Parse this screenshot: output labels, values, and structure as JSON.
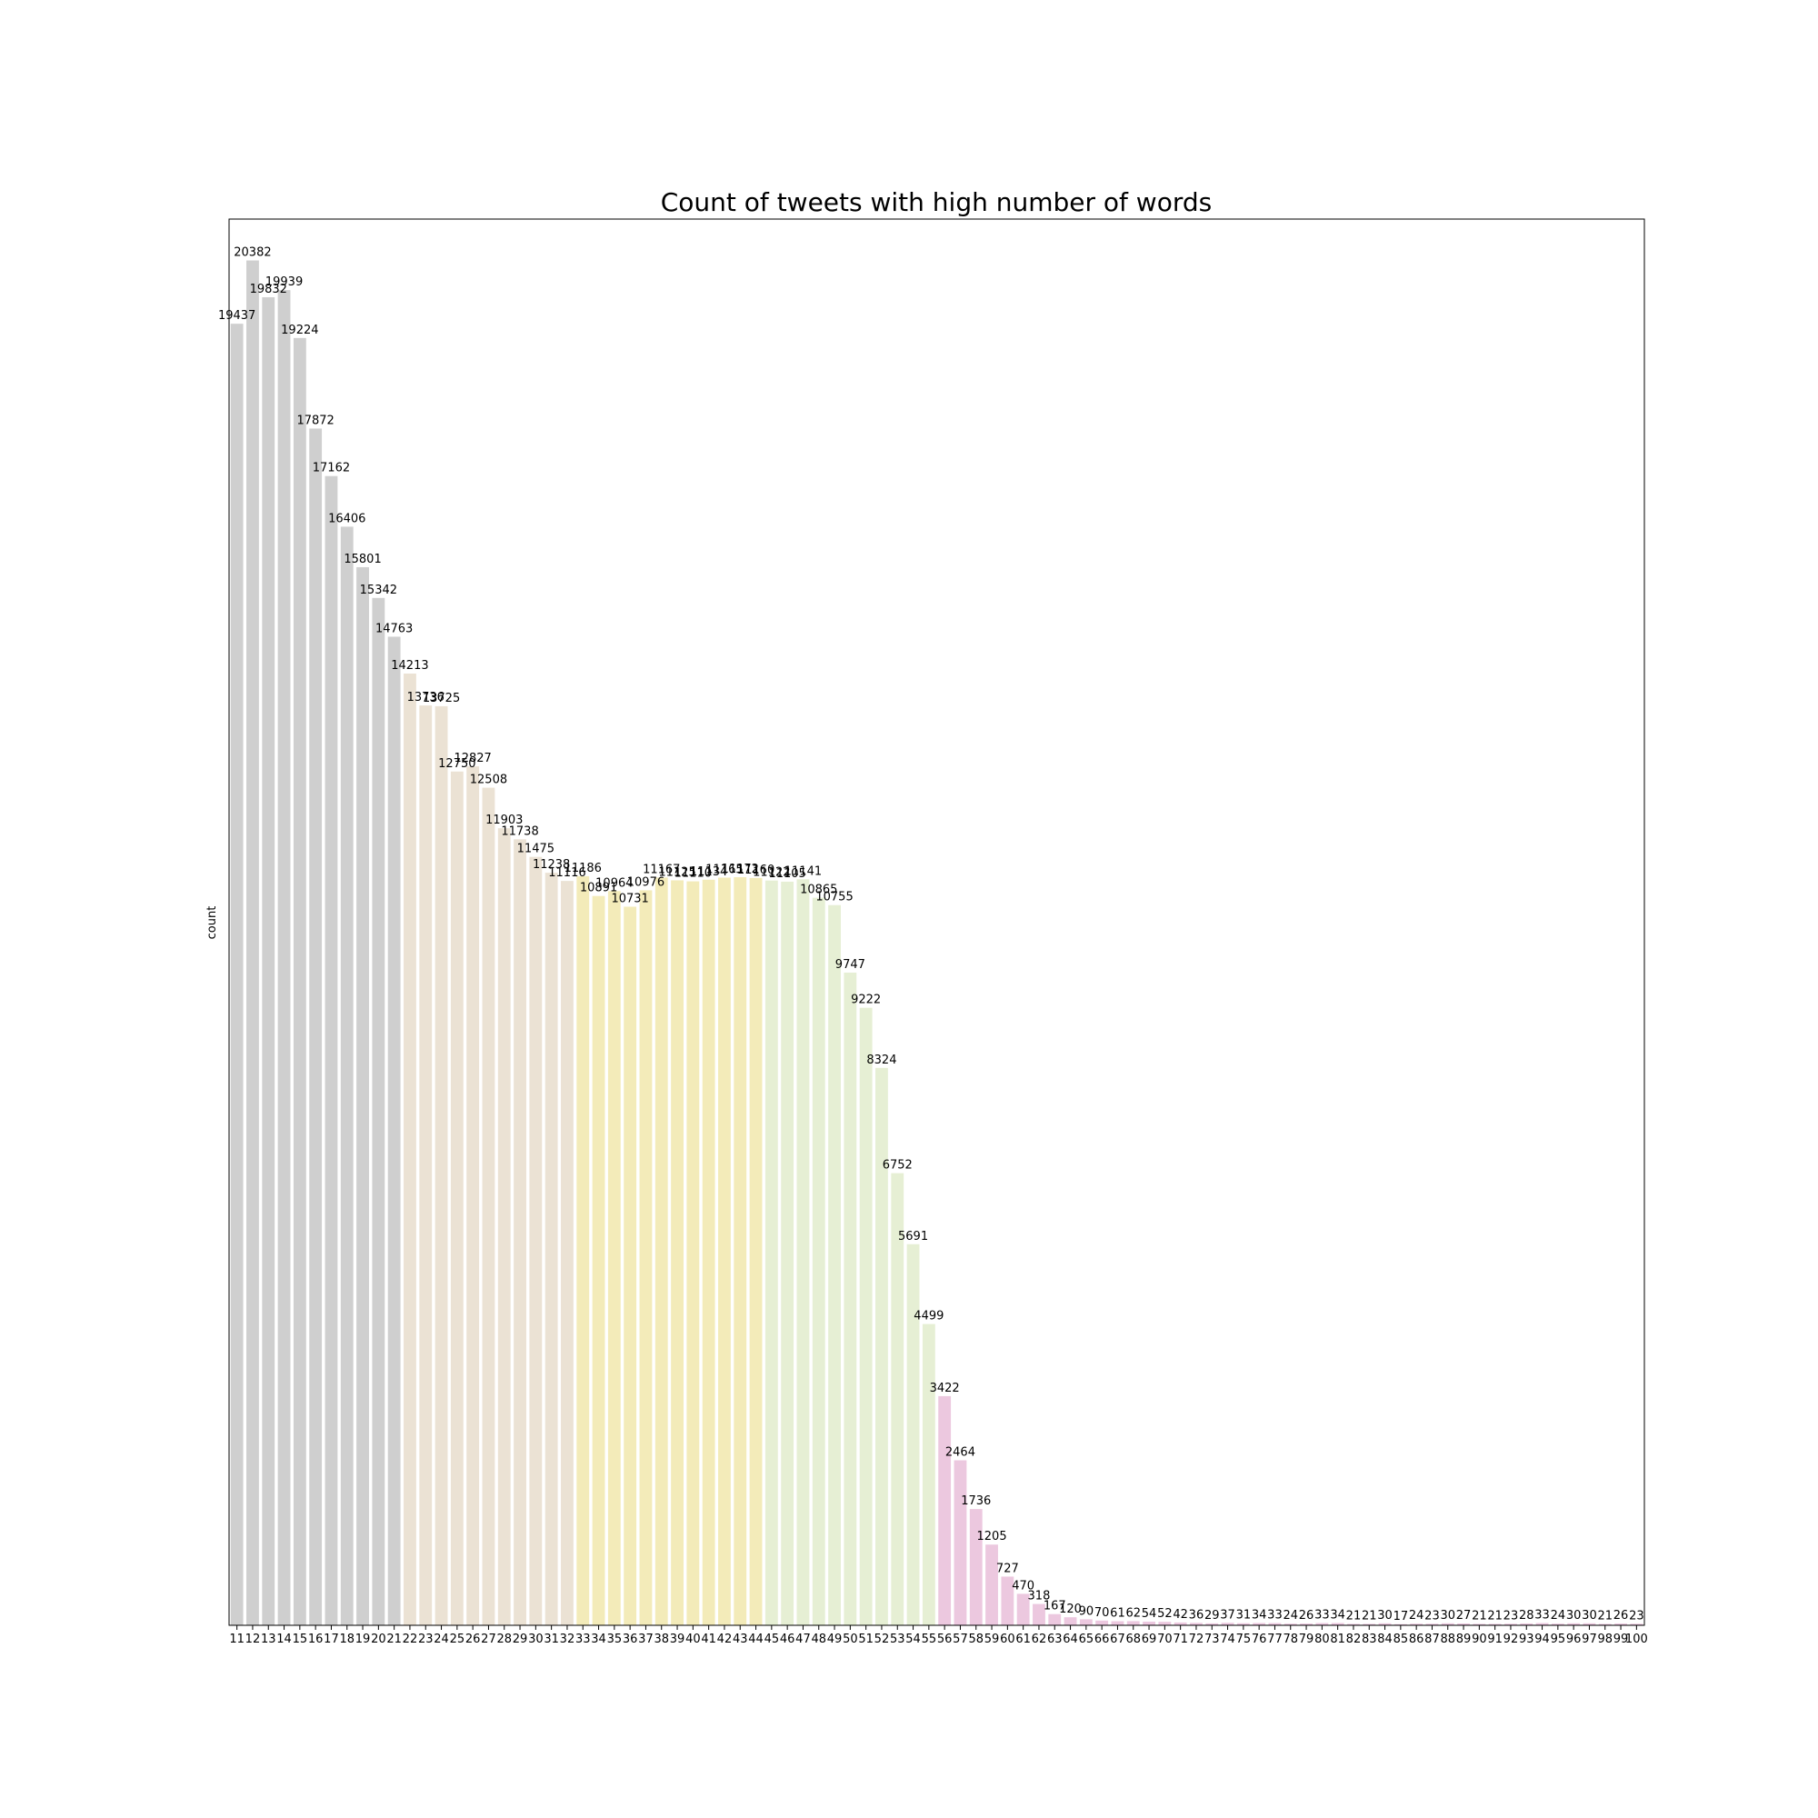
{
  "chart_data": {
    "type": "bar",
    "title": "Count of tweets with high number of words",
    "xlabel": "",
    "ylabel": "count",
    "ylim": [
      0,
      21000
    ],
    "grid": false,
    "legend": "none",
    "categories": [
      "11",
      "12",
      "13",
      "14",
      "15",
      "16",
      "17",
      "18",
      "19",
      "20",
      "21",
      "22",
      "23",
      "24",
      "25",
      "26",
      "27",
      "28",
      "29",
      "30",
      "31",
      "32",
      "33",
      "34",
      "35",
      "36",
      "37",
      "38",
      "39",
      "40",
      "41",
      "42",
      "43",
      "44",
      "45",
      "46",
      "47",
      "48",
      "49",
      "50",
      "51",
      "52",
      "53",
      "54",
      "55",
      "56",
      "57",
      "58",
      "59",
      "60",
      "61",
      "62",
      "63",
      "64",
      "65",
      "66",
      "67",
      "68",
      "69",
      "70",
      "71",
      "72",
      "73",
      "74",
      "75",
      "76",
      "77",
      "78",
      "79",
      "80",
      "81",
      "82",
      "83",
      "84",
      "85",
      "86",
      "87",
      "88",
      "89",
      "90",
      "91",
      "92",
      "93",
      "94",
      "95",
      "96",
      "97",
      "98",
      "99",
      "100"
    ],
    "values": [
      19437,
      20382,
      19832,
      19939,
      19224,
      17872,
      17162,
      16406,
      15801,
      15342,
      14763,
      14213,
      13736,
      13725,
      12750,
      12827,
      12508,
      11903,
      11738,
      11475,
      11238,
      11116,
      11186,
      10891,
      10964,
      10731,
      10976,
      11167,
      11125,
      11110,
      11134,
      11165,
      11172,
      11160,
      11122,
      11105,
      11141,
      10865,
      10755,
      9747,
      9222,
      8324,
      6752,
      5691,
      4499,
      3422,
      2464,
      1736,
      1205,
      727,
      470,
      318,
      167,
      120,
      90,
      70,
      61,
      62,
      54,
      52,
      42,
      36,
      29,
      37,
      31,
      34,
      33,
      24,
      26,
      33,
      34,
      21,
      21,
      30,
      17,
      24,
      23,
      30,
      27,
      21,
      21,
      23,
      28,
      33,
      24,
      30,
      30,
      21,
      26,
      23
    ],
    "color_groups": [
      {
        "from": "11",
        "to": "21",
        "color": "#cfcfcf"
      },
      {
        "from": "22",
        "to": "32",
        "color": "#ebe2d4"
      },
      {
        "from": "33",
        "to": "44",
        "color": "#f3ebb9"
      },
      {
        "from": "45",
        "to": "55",
        "color": "#e6efd4"
      },
      {
        "from": "56",
        "to": "100",
        "color": "#ecc8df"
      }
    ]
  }
}
